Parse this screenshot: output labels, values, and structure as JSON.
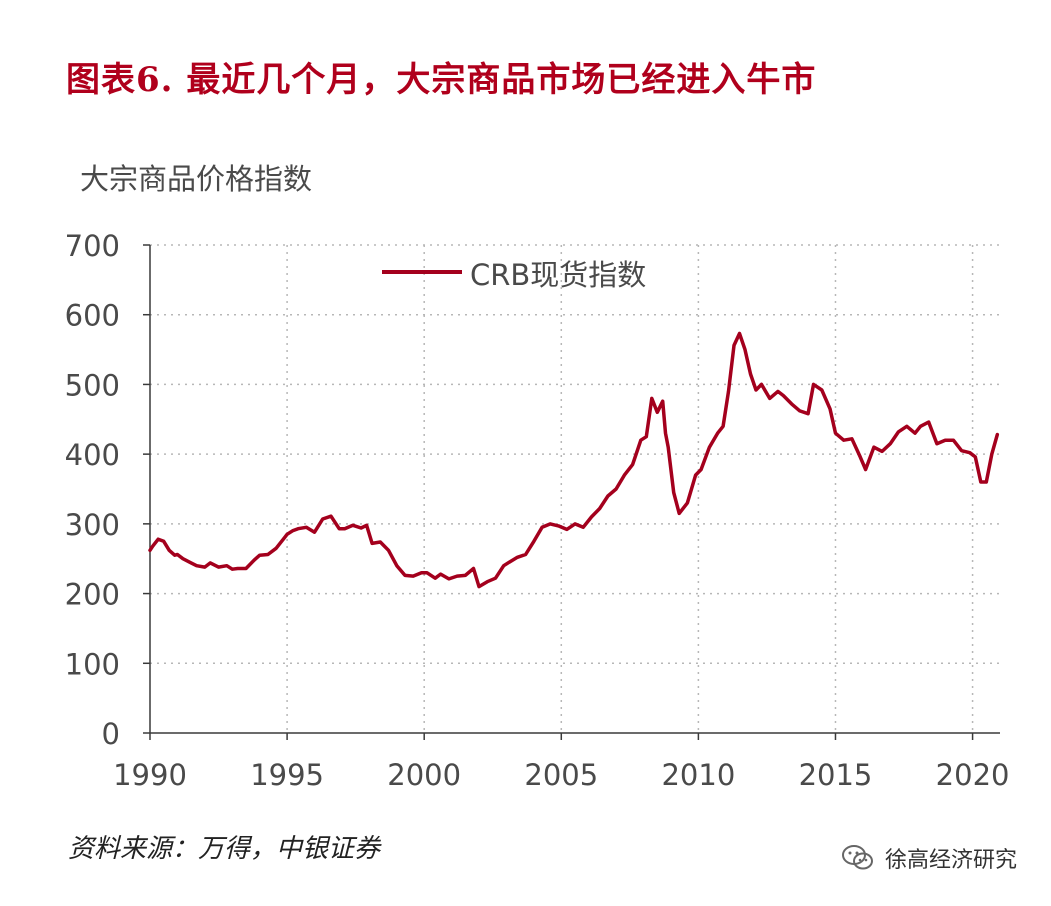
{
  "header": {
    "title": "图表6. 最近几个月，大宗商品市场已经进入牛市"
  },
  "footer": {
    "source": "资料来源：万得，中银证券",
    "watermark_text": "徐高经济研究",
    "watermark_icon": "wechat-icon"
  },
  "colors": {
    "title": "#b0001c",
    "series_line": "#a4001d",
    "grid": "#b7b7b7",
    "axis": "#3a3a3a",
    "text": "#4a4a4a"
  },
  "chart_data": {
    "type": "line",
    "title": "",
    "ylabel": "大宗商品价格指数",
    "xlabel": "",
    "ylim": [
      0,
      700
    ],
    "xlim": [
      1990,
      2021
    ],
    "y_ticks": [
      0,
      100,
      200,
      300,
      400,
      500,
      600,
      700
    ],
    "x_ticks": [
      1990,
      1995,
      2000,
      2005,
      2010,
      2015,
      2020
    ],
    "legend_position": "top-center",
    "grid": true,
    "series": [
      {
        "name": "CRB现货指数",
        "x": [
          1990.0,
          1990.1,
          1990.3,
          1990.5,
          1990.7,
          1990.9,
          1991.0,
          1991.2,
          1991.5,
          1991.7,
          1992.0,
          1992.2,
          1992.5,
          1992.8,
          1993.0,
          1993.2,
          1993.5,
          1993.8,
          1994.0,
          1994.3,
          1994.6,
          1994.9,
          1995.0,
          1995.2,
          1995.4,
          1995.7,
          1996.0,
          1996.3,
          1996.6,
          1996.9,
          1997.1,
          1997.4,
          1997.7,
          1997.9,
          1998.1,
          1998.4,
          1998.7,
          1999.0,
          1999.3,
          1999.6,
          1999.9,
          2000.1,
          2000.4,
          2000.6,
          2000.9,
          2001.2,
          2001.5,
          2001.8,
          2002.0,
          2002.3,
          2002.6,
          2002.9,
          2003.1,
          2003.4,
          2003.7,
          2004.0,
          2004.3,
          2004.6,
          2004.9,
          2005.2,
          2005.5,
          2005.8,
          2006.1,
          2006.4,
          2006.7,
          2007.0,
          2007.3,
          2007.6,
          2007.9,
          2008.1,
          2008.3,
          2008.5,
          2008.7,
          2008.8,
          2008.9,
          2009.1,
          2009.3,
          2009.6,
          2009.9,
          2010.1,
          2010.4,
          2010.7,
          2010.9,
          2011.1,
          2011.3,
          2011.5,
          2011.7,
          2011.9,
          2012.1,
          2012.3,
          2012.6,
          2012.9,
          2013.1,
          2013.4,
          2013.7,
          2014.0,
          2014.2,
          2014.5,
          2014.8,
          2015.0,
          2015.3,
          2015.6,
          2015.9,
          2016.1,
          2016.4,
          2016.7,
          2017.0,
          2017.3,
          2017.6,
          2017.9,
          2018.1,
          2018.4,
          2018.7,
          2019.0,
          2019.3,
          2019.6,
          2019.9,
          2020.1,
          2020.3,
          2020.5,
          2020.7,
          2020.9
        ],
        "values": [
          262,
          268,
          278,
          275,
          262,
          255,
          256,
          250,
          244,
          240,
          238,
          244,
          238,
          240,
          235,
          236,
          236,
          248,
          255,
          256,
          265,
          280,
          285,
          290,
          293,
          295,
          288,
          307,
          311,
          293,
          293,
          298,
          294,
          298,
          272,
          274,
          262,
          240,
          226,
          225,
          230,
          230,
          222,
          228,
          221,
          225,
          226,
          236,
          210,
          217,
          222,
          240,
          245,
          252,
          256,
          275,
          295,
          300,
          297,
          292,
          300,
          295,
          310,
          322,
          340,
          350,
          370,
          385,
          420,
          425,
          480,
          460,
          476,
          430,
          410,
          345,
          315,
          330,
          370,
          378,
          410,
          430,
          440,
          490,
          556,
          573,
          550,
          515,
          492,
          500,
          480,
          490,
          484,
          472,
          462,
          458,
          500,
          492,
          465,
          430,
          420,
          422,
          396,
          378,
          410,
          404,
          415,
          432,
          440,
          430,
          440,
          446,
          415,
          420,
          420,
          405,
          402,
          396,
          360,
          360,
          400,
          428
        ]
      }
    ]
  }
}
